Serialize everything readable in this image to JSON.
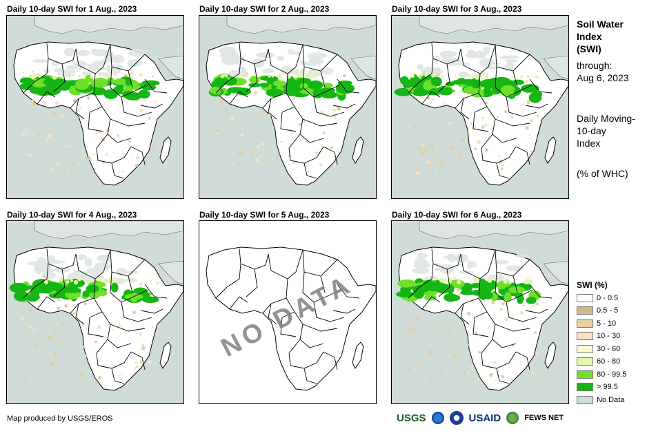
{
  "panels": [
    {
      "title": "Daily 10-day  SWI for 1 Aug., 2023",
      "has_data": true
    },
    {
      "title": "Daily 10-day  SWI for 2 Aug., 2023",
      "has_data": true
    },
    {
      "title": "Daily 10-day  SWI for 3 Aug., 2023",
      "has_data": true
    },
    {
      "title": "Daily 10-day  SWI for 4 Aug., 2023",
      "has_data": true
    },
    {
      "title": "Daily 10-day  SWI for 5 Aug., 2023",
      "has_data": false,
      "overlay": "NO DATA"
    },
    {
      "title": "Daily 10-day  SWI for 6 Aug., 2023",
      "has_data": true
    }
  ],
  "side_info": {
    "title_line1": "Soil Water",
    "title_line2": "Index",
    "title_line3": "(SWI)",
    "through_label": "through:",
    "through_date": "Aug 6, 2023",
    "desc_line1": "Daily Moving-",
    "desc_line2": "10-day",
    "desc_line3": "Index",
    "units": "(% of WHC)"
  },
  "legend": {
    "title": "SWI (%)",
    "items": [
      {
        "label": "0 - 0.5",
        "color": "#ffffff"
      },
      {
        "label": "0.5 - 5",
        "color": "#d2b98c"
      },
      {
        "label": "5 - 10",
        "color": "#e8cf9e"
      },
      {
        "label": "10 - 30",
        "color": "#f5e3c0"
      },
      {
        "label": "30 - 60",
        "color": "#fbf8d2"
      },
      {
        "label": "60 - 80",
        "color": "#e2f7a8"
      },
      {
        "label": "80 - 99.5",
        "color": "#6ee02a"
      },
      {
        "label": "> 99.5",
        "color": "#15b515"
      },
      {
        "label": "No Data",
        "color": "#cfdcd7"
      }
    ]
  },
  "colors": {
    "ocean": "#cfdcd7",
    "land": "#ffffff",
    "desert_nodata": "#dfe6e2",
    "border": "#000000"
  },
  "credit": "Map produced by USGS/EROS",
  "logos": {
    "usgs": "USGS",
    "usaid": "USAID",
    "fews": "FEWS NET"
  }
}
